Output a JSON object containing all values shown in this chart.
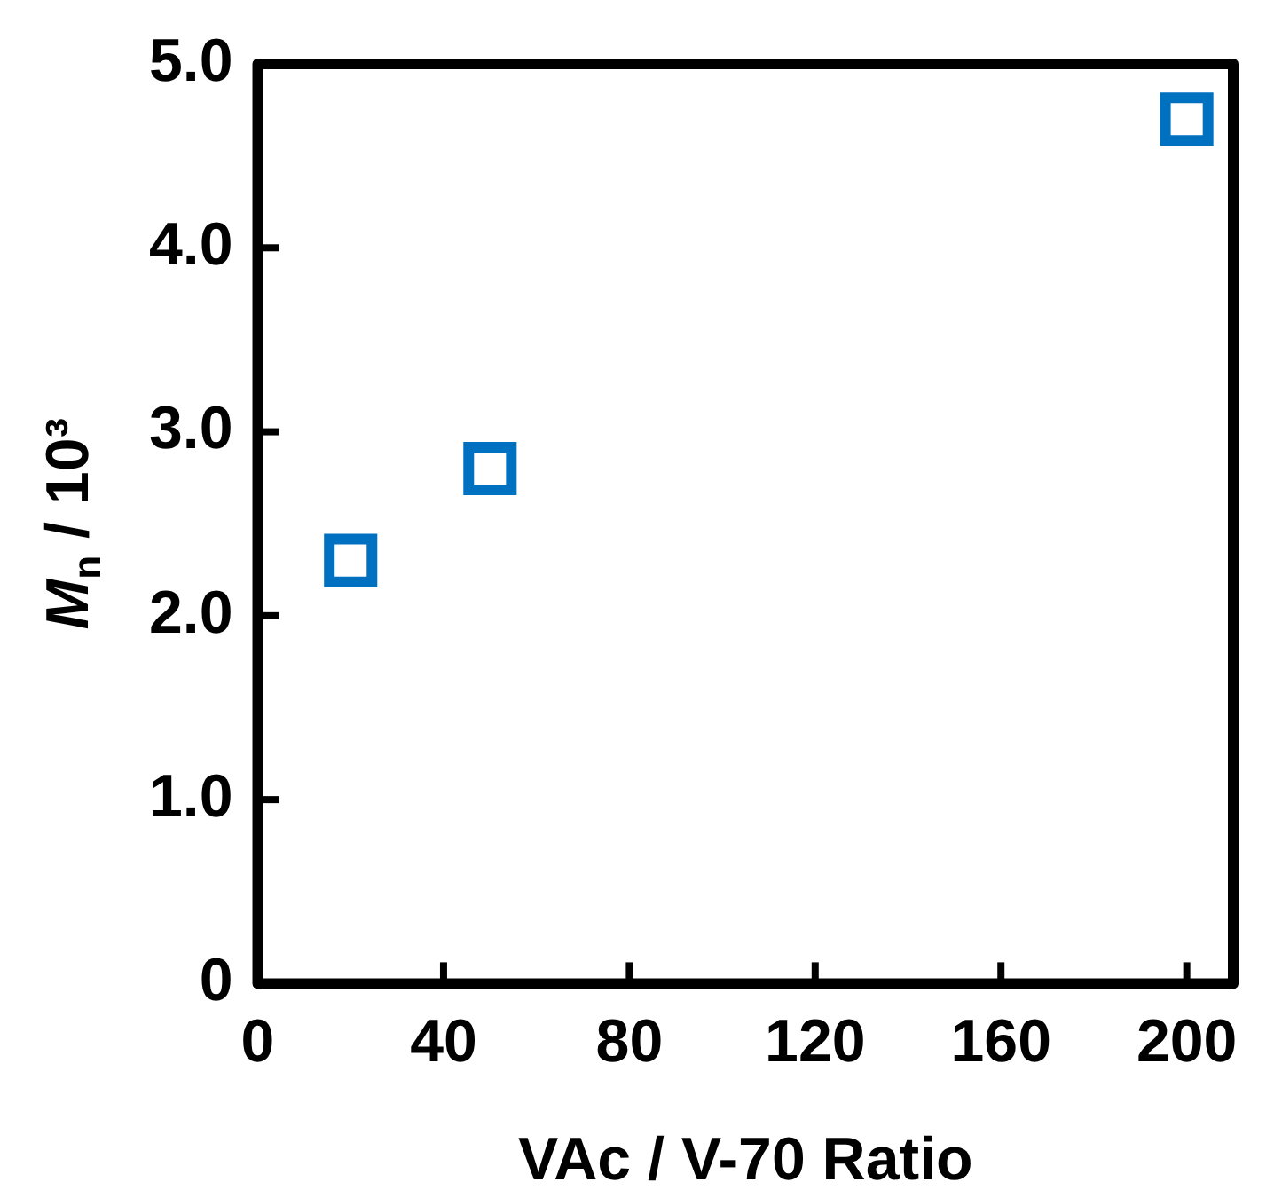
{
  "chart_data": {
    "type": "scatter",
    "xlabel": "VAc / V-70 Ratio",
    "ylabel": "M$_{n}$ / 10³",
    "x": [
      20,
      50,
      200
    ],
    "series": [
      {
        "color": "#0070c0",
        "values": [
          2.3,
          2.8,
          4.7
        ]
      }
    ],
    "xlim": [
      0,
      210
    ],
    "xticks": [
      0,
      40,
      80,
      120,
      160,
      200
    ],
    "ylim": [
      0,
      5
    ],
    "yticks": [
      0,
      {
        "value": 1,
        "label": "1.0"
      },
      {
        "value": 2,
        "label": "2.0"
      },
      {
        "value": 3,
        "label": "3.0"
      },
      {
        "value": 4,
        "label": "4.0"
      },
      {
        "value": 5,
        "label": "5.0"
      }
    ],
    "grid": false,
    "legend": false,
    "marker": "square"
  }
}
